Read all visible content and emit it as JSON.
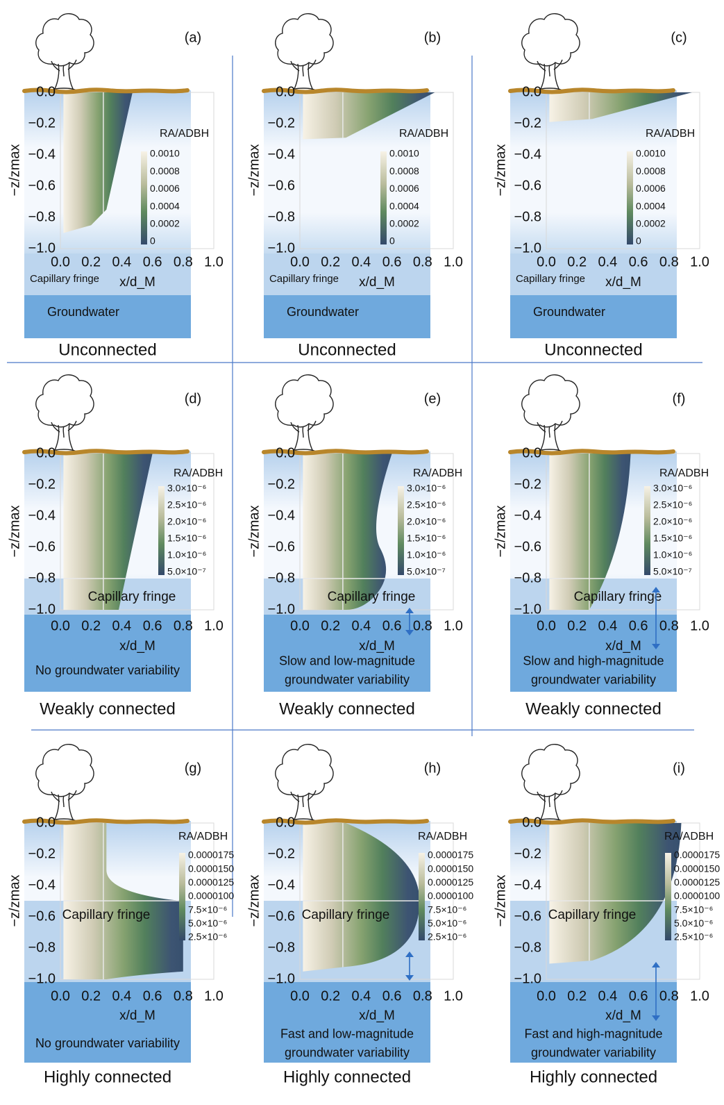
{
  "axes": {
    "y_label": "−z/zmax",
    "x_label": "x/d_M",
    "colorbar_label": "RA/ADBH",
    "y_ticks": [
      "0.0",
      "−0.2",
      "−0.4",
      "−0.6",
      "−0.8",
      "−1.0"
    ],
    "x_ticks": [
      "0.0",
      "0.2",
      "0.4",
      "0.6",
      "0.8",
      "1.0"
    ]
  },
  "panels": [
    {
      "label": "(a)",
      "connection": "Unconnected",
      "fringe_label": "Capillary fringe",
      "note": [
        "Groundwater"
      ],
      "colorbar_ticks": [
        "0.0010",
        "0.0008",
        "0.0006",
        "0.0004",
        "0.0002",
        "0"
      ]
    },
    {
      "label": "(b)",
      "connection": "Unconnected",
      "fringe_label": "Capillary fringe",
      "note": [
        "Groundwater"
      ],
      "colorbar_ticks": [
        "0.0010",
        "0.0008",
        "0.0006",
        "0.0004",
        "0.0002",
        "0"
      ]
    },
    {
      "label": "(c)",
      "connection": "Unconnected",
      "fringe_label": "Capillary fringe",
      "note": [
        "Groundwater"
      ],
      "colorbar_ticks": [
        "0.0010",
        "0.0008",
        "0.0006",
        "0.0004",
        "0.0002",
        "0"
      ]
    },
    {
      "label": "(d)",
      "connection": "Weakly connected",
      "fringe_label": "Capillary fringe",
      "note": [
        "No groundwater variability"
      ],
      "colorbar_ticks": [
        "3.0×10⁻⁶",
        "2.5×10⁻⁶",
        "2.0×10⁻⁶",
        "1.5×10⁻⁶",
        "1.0×10⁻⁶",
        "5.0×10⁻⁷"
      ]
    },
    {
      "label": "(e)",
      "connection": "Weakly connected",
      "fringe_label": "Capillary fringe",
      "note": [
        "Slow and low-magnitude",
        "groundwater variability"
      ],
      "colorbar_ticks": [
        "3.0×10⁻⁶",
        "2.5×10⁻⁶",
        "2.0×10⁻⁶",
        "1.5×10⁻⁶",
        "1.0×10⁻⁶",
        "5.0×10⁻⁷"
      ]
    },
    {
      "label": "(f)",
      "connection": "Weakly connected",
      "fringe_label": "Capillary fringe",
      "note": [
        "Slow and high-magnitude",
        "groundwater variability"
      ],
      "colorbar_ticks": [
        "3.0×10⁻⁶",
        "2.5×10⁻⁶",
        "2.0×10⁻⁶",
        "1.5×10⁻⁶",
        "1.0×10⁻⁶",
        "5.0×10⁻⁷"
      ]
    },
    {
      "label": "(g)",
      "connection": "Highly connected",
      "fringe_label": "Capillary fringe",
      "note": [
        "No groundwater variability"
      ],
      "colorbar_ticks": [
        "0.0000175",
        "0.0000150",
        "0.0000125",
        "0.0000100",
        "7.5×10⁻⁶",
        "5.0×10⁻⁶",
        "2.5×10⁻⁶"
      ]
    },
    {
      "label": "(h)",
      "connection": "Highly connected",
      "fringe_label": "Capillary fringe",
      "note": [
        "Fast and low-magnitude",
        "groundwater variability"
      ],
      "colorbar_ticks": [
        "0.0000175",
        "0.0000150",
        "0.0000125",
        "0.0000100",
        "7.5×10⁻⁶",
        "5.0×10⁻⁶",
        "2.5×10⁻⁶"
      ]
    },
    {
      "label": "(i)",
      "connection": "Highly connected",
      "fringe_label": "Capillary fringe",
      "note": [
        "Fast and high-magnitude",
        "groundwater variability"
      ],
      "colorbar_ticks": [
        "0.0000175",
        "0.0000150",
        "0.0000125",
        "0.0000100",
        "7.5×10⁻⁶",
        "5.0×10⁻⁶",
        "2.5×10⁻⁶"
      ]
    }
  ]
}
